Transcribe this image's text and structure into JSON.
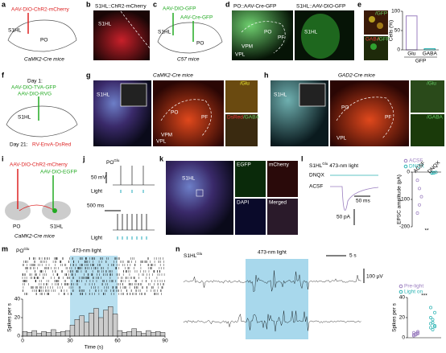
{
  "panels": {
    "a": {
      "letter": "a",
      "virus": "AAV-DIO-ChR2-mCherry",
      "regions": [
        "S1HL",
        "PO"
      ],
      "mouse": "CaMK2-Cre mice"
    },
    "b": {
      "letter": "b",
      "title": "S1HL::ChR2-mCherry",
      "region": "S1HL"
    },
    "c": {
      "letter": "c",
      "virus1": "AAV-DIO-GFP",
      "virus2": "AAV-Cre-GFP",
      "regions": [
        "S1HL",
        "PO"
      ],
      "mouse": "C57 mice"
    },
    "d": {
      "letter": "d",
      "title1": "PO::AAV-Cre-GFP",
      "title2": "S1HL::AAV-DIO-GFP",
      "regions": [
        "PO",
        "PF",
        "VPM",
        "VPL",
        "S1HL"
      ]
    },
    "e": {
      "letter": "e",
      "stain1": "/GFP",
      "stain2": "GABA",
      "stain3": "/GFP"
    },
    "f": {
      "letter": "f",
      "day1": "Day 1:",
      "virus1": "AAV-DIO-TVA-GFP",
      "virus2": "AAV-DIO-RVG",
      "region": "S1HL",
      "day21": "Day 21:",
      "virus3": "RV-EnvA-DsRed"
    },
    "g": {
      "letter": "g",
      "mouse": "CaMK2-Cre mice",
      "regions": [
        "S1HL",
        "PO",
        "PF",
        "VPM",
        "VPL"
      ],
      "stain1": "/Glu",
      "stain2": "DsRed",
      "stain3": "/GABA"
    },
    "h": {
      "letter": "h",
      "mouse": "GAD2-Cre mice",
      "regions": [
        "S1HL",
        "PO",
        "PF",
        "VPL"
      ],
      "stain1": "/Glu",
      "stain2": "/GABA"
    },
    "i": {
      "letter": "i",
      "virus1": "AAV-DIO-ChR2-mCherry",
      "virus2": "AAV-DIO-EGFP",
      "regions": [
        "PO",
        "S1HL"
      ],
      "mouse": "CaMK2-Cre mice"
    },
    "j": {
      "letter": "j",
      "cell": {
        "base": "PO",
        "sup": "Glu"
      },
      "vscale": "50 mV",
      "light1": "Light",
      "tscale": "500 ms",
      "light2": "Light"
    },
    "k": {
      "letter": "k",
      "region": "S1HL",
      "channels": [
        "EGFP",
        "mCherry",
        "DAPI",
        "Merged"
      ]
    },
    "l": {
      "letter": "l",
      "cell": {
        "base": "S1HL",
        "sup": "Glu"
      },
      "light": "473-nm light",
      "trace1": "DNQX",
      "trace2": "ACSF",
      "tscale": "50 ms",
      "iscale": "50 pA"
    },
    "m": {
      "letter": "m",
      "cell": {
        "base": "PO",
        "sup": "Glu"
      },
      "light": "473-nm light"
    },
    "n": {
      "letter": "n",
      "cell": {
        "base": "S1HL",
        "sup": "Glu"
      },
      "light": "473-nm light",
      "tscale": "5 s",
      "vscale": "100 µV"
    }
  },
  "chart_data": [
    {
      "type": "bar",
      "ylabel": "Cells (%)",
      "categories": [
        "Glu",
        "GABA"
      ],
      "xlabel": "GFP",
      "values": [
        88,
        3
      ],
      "colors": [
        "#9b7fc0",
        "#2bb3b3"
      ],
      "ylim": [
        0,
        100
      ],
      "yticks": [
        0,
        50,
        100
      ]
    },
    {
      "type": "scatter",
      "ylabel": "EPSC amplitude (pA)",
      "categories": [
        "ACSF",
        "DNQX"
      ],
      "series": [
        {
          "name": "ACSF",
          "color": "#9b7fc0",
          "values": [
            -30,
            -60,
            -90,
            -150,
            -120
          ]
        },
        {
          "name": "DNQX",
          "color": "#2bb3b3",
          "values": [
            -2,
            -3,
            -1,
            -4,
            -2
          ]
        }
      ],
      "significance": "**",
      "ylim": [
        -200,
        0
      ],
      "yticks": [
        0,
        -100,
        -200
      ]
    },
    {
      "type": "histogram",
      "ylabel": "Spikes per s",
      "xlabel": "Time (s)",
      "bins": [
        0,
        3,
        6,
        9,
        12,
        15,
        18,
        21,
        24,
        27,
        30,
        33,
        36,
        39,
        42,
        45,
        48,
        51,
        54,
        57,
        60,
        63,
        66,
        69,
        72,
        75,
        78,
        81,
        84,
        87,
        90
      ],
      "values": [
        5,
        4,
        6,
        3,
        5,
        4,
        7,
        4,
        5,
        6,
        12,
        18,
        22,
        15,
        25,
        30,
        20,
        28,
        32,
        24,
        6,
        4,
        5,
        8,
        5,
        3,
        6,
        4,
        5,
        4
      ],
      "light_on": [
        30,
        60
      ],
      "color": "#ccc",
      "xlim": [
        0,
        90
      ],
      "xticks": [
        0,
        30,
        60,
        90
      ],
      "ylim": [
        0,
        40
      ],
      "yticks": [
        0,
        20,
        40
      ]
    },
    {
      "type": "scatter",
      "ylabel": "Spikes per s",
      "categories": [
        "Pre-light",
        "Light on"
      ],
      "series": [
        {
          "name": "Pre-light",
          "color": "#9b7fc0",
          "values": [
            2,
            3,
            4,
            5,
            3,
            6,
            2,
            4,
            5,
            3
          ]
        },
        {
          "name": "Light on",
          "color": "#2bb3b3",
          "values": [
            10,
            15,
            12,
            20,
            8,
            25,
            14,
            18,
            11,
            30
          ]
        }
      ],
      "significance": "***",
      "ylim": [
        0,
        40
      ],
      "yticks": [
        0,
        20,
        40
      ]
    }
  ]
}
